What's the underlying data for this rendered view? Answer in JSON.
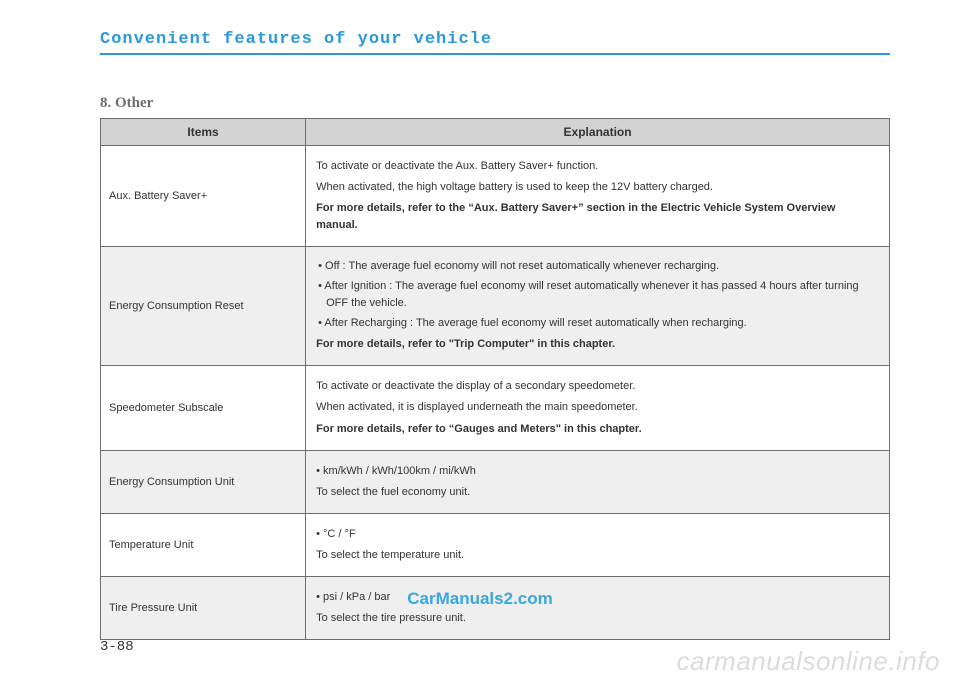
{
  "chapter_title": "Convenient features of your vehicle",
  "section_title": "8. Other",
  "table": {
    "headers": {
      "items": "Items",
      "explanation": "Explanation"
    },
    "rows": [
      {
        "item": "Aux. Battery Saver+",
        "alt": false,
        "lines": [
          {
            "text": "To activate or deactivate the Aux. Battery Saver+ function.",
            "cls": "para"
          },
          {
            "text": "When activated, the high voltage battery is used to keep the 12V battery charged.",
            "cls": "para"
          },
          {
            "text": "For more details, refer to the “Aux. Battery Saver+” section in the Electric Vehicle System Overview manual.",
            "cls": "para bold"
          }
        ]
      },
      {
        "item": "Energy Consumption Reset",
        "alt": true,
        "lines": [
          {
            "text": "• Off : The average fuel economy will not reset automatically whenever recharging.",
            "cls": "bullet"
          },
          {
            "text": "• After Ignition : The average fuel economy will reset automatically whenever it has passed 4 hours after turning OFF the vehicle.",
            "cls": "bullet"
          },
          {
            "text": "• After Recharging : The average fuel economy will reset automatically when recharging.",
            "cls": "bullet"
          },
          {
            "text": "For more details, refer to \"Trip Computer\" in this chapter.",
            "cls": "para bold"
          }
        ]
      },
      {
        "item": "Speedometer Subscale",
        "alt": false,
        "lines": [
          {
            "text": "To activate or deactivate the display of a secondary speedometer.",
            "cls": "para"
          },
          {
            "text": "When activated, it is displayed underneath the main speedometer.",
            "cls": "para"
          },
          {
            "text": "For more details, refer to “Gauges and Meters\" in this chapter.",
            "cls": "para bold"
          }
        ]
      },
      {
        "item": "Energy Consumption Unit",
        "alt": true,
        "lines": [
          {
            "text": "• km/kWh /  kWh/100km / mi/kWh",
            "cls": "para"
          },
          {
            "text": "To select the fuel economy unit.",
            "cls": "para"
          }
        ]
      },
      {
        "item": "Temperature Unit",
        "alt": false,
        "lines": [
          {
            "text": "• °C / °F",
            "cls": "para"
          },
          {
            "text": "To select the temperature unit.",
            "cls": "para"
          }
        ]
      },
      {
        "item": "Tire Pressure Unit",
        "alt": true,
        "lines": [
          {
            "text": "• psi / kPa / bar",
            "cls": "para"
          },
          {
            "text": "To select the tire pressure unit.",
            "cls": "para"
          }
        ]
      }
    ]
  },
  "watermark1": "CarManuals2.com",
  "page_number": "3-88",
  "watermark2": "carmanualsonline.info"
}
